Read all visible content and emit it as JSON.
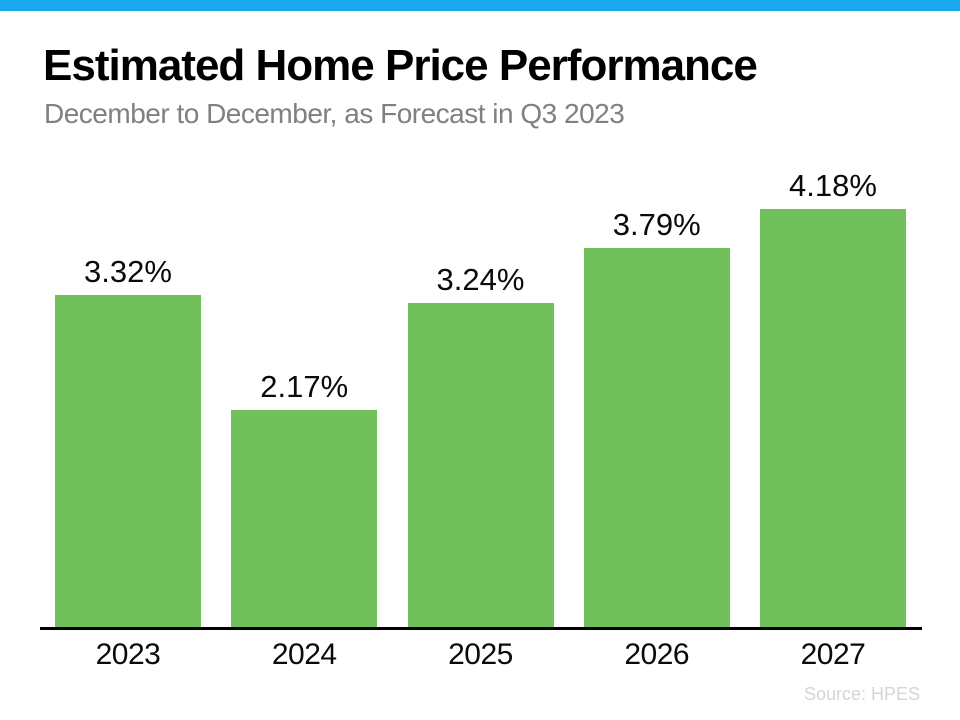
{
  "page": {
    "accent_bar_color": "#18A8EB",
    "background_color": "#FFFFFF"
  },
  "header": {
    "title": "Estimated Home Price Performance",
    "subtitle": "December to December, as Forecast in Q3 2023"
  },
  "footer": {
    "source": "Source: HPES"
  },
  "chart_data": {
    "type": "bar",
    "title": "Estimated Home Price Performance",
    "subtitle": "December to December, as Forecast in Q3 2023",
    "categories": [
      "2023",
      "2024",
      "2025",
      "2026",
      "2027"
    ],
    "values": [
      3.32,
      2.17,
      3.24,
      3.79,
      4.18
    ],
    "value_labels": [
      "3.32%",
      "2.17%",
      "3.24%",
      "3.79%",
      "4.18%"
    ],
    "xlabel": "",
    "ylabel": "",
    "ylim": [
      0,
      4.7
    ],
    "unit": "percent",
    "grid": false,
    "legend": false,
    "bar_color": "#72C05B",
    "axis_color": "#000000",
    "label_color": "#0A0A0A",
    "source": "Source: HPES"
  }
}
